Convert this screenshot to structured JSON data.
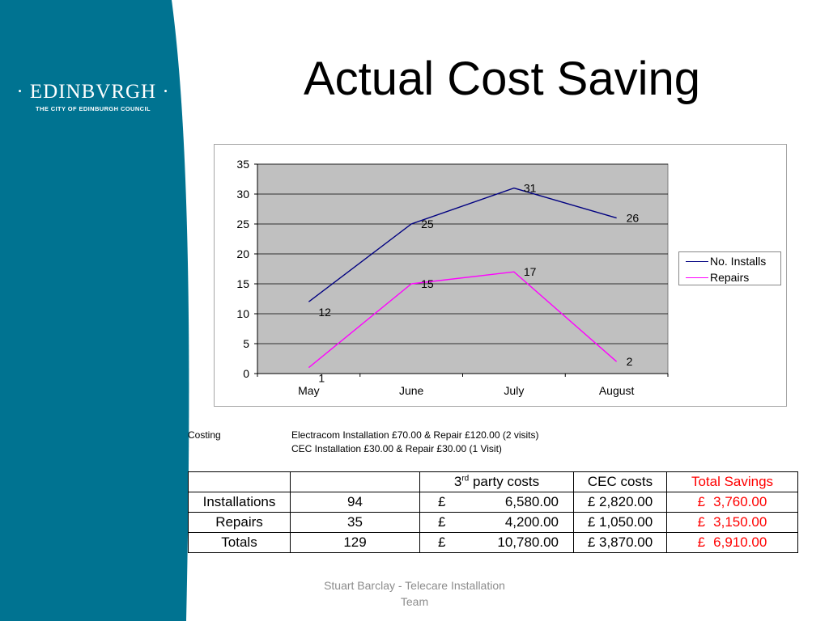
{
  "colors": {
    "sidebar": "#007391",
    "plot_bg": "#c0c0c0",
    "installs": "#000080",
    "repairs": "#ff00ff",
    "savings": "#ff0000"
  },
  "logo": {
    "main": "· EDINBVRGH ·",
    "sub": "THE CITY OF EDINBURGH COUNCIL"
  },
  "slide": {
    "title": "Actual Cost Saving"
  },
  "chart_data": {
    "type": "line",
    "categories": [
      "May",
      "June",
      "July",
      "August"
    ],
    "series": [
      {
        "name": "No. Installs",
        "values": [
          12,
          25,
          31,
          26
        ]
      },
      {
        "name": "Repairs",
        "values": [
          1,
          15,
          17,
          2
        ]
      }
    ],
    "ylim": [
      0,
      35
    ],
    "yticks": [
      0,
      5,
      10,
      15,
      20,
      25,
      30,
      35
    ],
    "grid": true,
    "legend": "right"
  },
  "costing": {
    "label": "Costing",
    "lines": [
      "Electracom Installation £70.00 & Repair £120.00 (2 visits)",
      "CEC Installation £30.00 & Repair £30.00 (1 Visit)"
    ]
  },
  "table": {
    "header": {
      "third_party_base": "3",
      "third_party_sup": "rd",
      "third_party_rest": " party costs",
      "cec": "CEC costs",
      "savings": "Total Savings"
    },
    "rows": [
      {
        "label": "Installations",
        "count": "94",
        "currency": "£",
        "third_party": "6,580.00",
        "cec": "£ 2,820.00",
        "savings_currency": "£",
        "savings": "3,760.00"
      },
      {
        "label": "Repairs",
        "count": "35",
        "currency": "£",
        "third_party": "4,200.00",
        "cec": "£ 1,050.00",
        "savings_currency": "£",
        "savings": "3,150.00"
      },
      {
        "label": "Totals",
        "count": "129",
        "currency": "£",
        "third_party": "10,780.00",
        "cec": "£ 3,870.00",
        "savings_currency": "£",
        "savings": "6,910.00"
      }
    ]
  },
  "footer": {
    "line1": "Stuart Barclay - Telecare Installation",
    "line2": "Team"
  }
}
